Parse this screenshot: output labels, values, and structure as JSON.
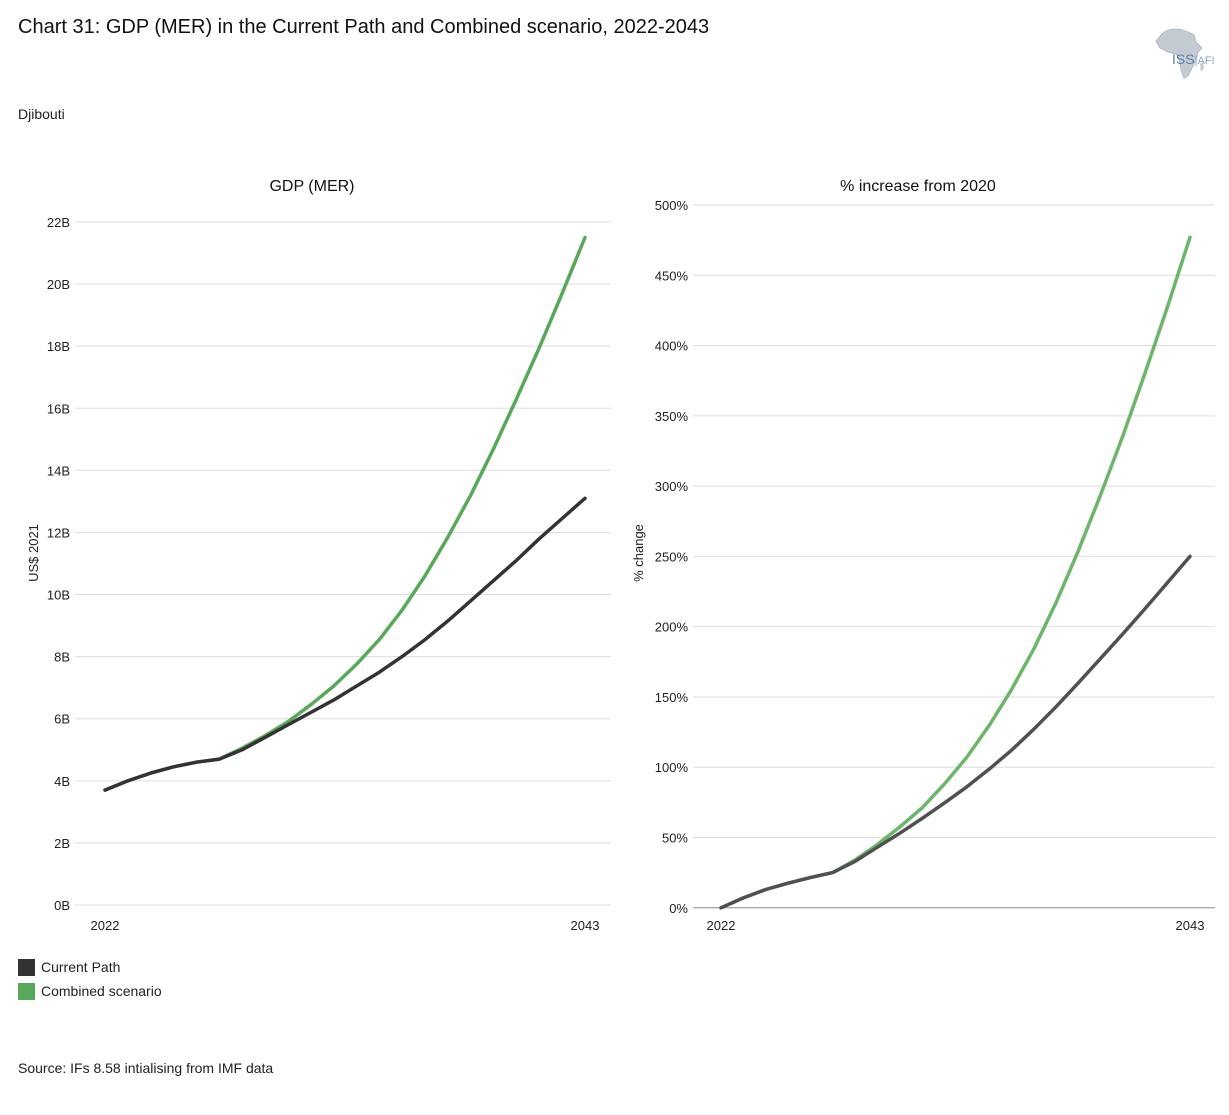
{
  "title": "Chart 31: GDP (MER) in the Current Path and Combined scenario, 2022-2043",
  "subtitle": "Djibouti",
  "logo": {
    "name": "ISS",
    "suffix": "AFI"
  },
  "source": "Source: IFs 8.58 intialising from IMF data",
  "legend": [
    {
      "label": "Current Path",
      "color": "#333333"
    },
    {
      "label": "Combined scenario",
      "color": "#59a85a"
    }
  ],
  "chart_data": [
    {
      "type": "line",
      "title": "GDP (MER)",
      "ylabel": "US$ 2021",
      "xlabel": "",
      "x": [
        2022,
        2023,
        2024,
        2025,
        2026,
        2027,
        2028,
        2029,
        2030,
        2031,
        2032,
        2033,
        2034,
        2035,
        2036,
        2037,
        2038,
        2039,
        2040,
        2041,
        2042,
        2043
      ],
      "x_tick_labels": [
        "2022",
        "2043"
      ],
      "ylim": [
        0,
        22
      ],
      "y_ticks": [
        0,
        2,
        4,
        6,
        8,
        10,
        12,
        14,
        16,
        18,
        20,
        22
      ],
      "y_tick_labels": [
        "0B",
        "2B",
        "4B",
        "6B",
        "8B",
        "10B",
        "12B",
        "14B",
        "16B",
        "18B",
        "20B",
        "22B"
      ],
      "grid": true,
      "series": [
        {
          "name": "Current Path",
          "color": "#333333",
          "values": [
            3.7,
            4.0,
            4.25,
            4.45,
            4.6,
            4.7,
            5.0,
            5.4,
            5.8,
            6.2,
            6.6,
            7.05,
            7.5,
            8.0,
            8.55,
            9.15,
            9.8,
            10.45,
            11.1,
            11.8,
            12.45,
            13.1
          ]
        },
        {
          "name": "Combined scenario",
          "color": "#59a85a",
          "values": [
            3.7,
            4.0,
            4.25,
            4.45,
            4.6,
            4.7,
            5.05,
            5.45,
            5.9,
            6.45,
            7.05,
            7.75,
            8.55,
            9.5,
            10.6,
            11.85,
            13.2,
            14.7,
            16.3,
            17.95,
            19.7,
            21.5
          ]
        }
      ]
    },
    {
      "type": "line",
      "title": "% increase from 2020",
      "ylabel": "% change",
      "xlabel": "",
      "x": [
        2022,
        2023,
        2024,
        2025,
        2026,
        2027,
        2028,
        2029,
        2030,
        2031,
        2032,
        2033,
        2034,
        2035,
        2036,
        2037,
        2038,
        2039,
        2040,
        2041,
        2042,
        2043
      ],
      "x_tick_labels": [
        "2022",
        "2043"
      ],
      "ylim": [
        -3,
        500
      ],
      "y_ticks": [
        0,
        50,
        100,
        150,
        200,
        250,
        300,
        350,
        400,
        450,
        500
      ],
      "y_tick_labels": [
        "0%",
        "50%",
        "100%",
        "150%",
        "200%",
        "250%",
        "300%",
        "350%",
        "400%",
        "450%",
        "500%"
      ],
      "grid": true,
      "series": [
        {
          "name": "Current Path",
          "color": "#505050",
          "values": [
            0,
            7,
            13,
            17.5,
            21.5,
            25,
            33,
            43,
            53,
            63.5,
            74.5,
            86,
            98.5,
            112,
            127,
            143,
            160,
            177.5,
            195,
            213,
            231.5,
            250
          ]
        },
        {
          "name": "Combined scenario",
          "color": "#6cb56a",
          "values": [
            0,
            7,
            13,
            17.5,
            21.5,
            25,
            34,
            45,
            57.5,
            71,
            88,
            107,
            129.5,
            155,
            184,
            217,
            254,
            294,
            336,
            381,
            428,
            477
          ]
        }
      ]
    }
  ]
}
